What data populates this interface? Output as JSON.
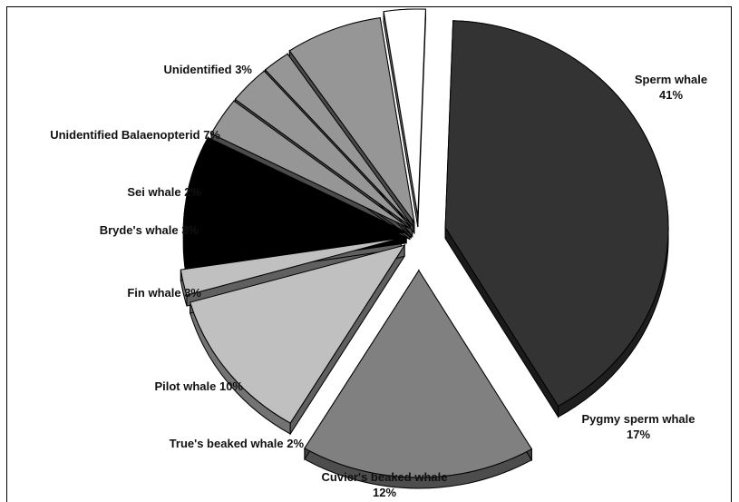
{
  "chart_data": {
    "type": "pie",
    "style": "3d-exploded",
    "slices": [
      {
        "label": "Sperm whale",
        "value": 41,
        "color": "#333333"
      },
      {
        "label": "Pygmy sperm whale",
        "value": 17,
        "color": "#808080"
      },
      {
        "label": "Cuvier's beaked whale",
        "value": 12,
        "color": "#c0c0c0"
      },
      {
        "label": "True's beaked whale",
        "value": 2,
        "color": "#c0c0c0"
      },
      {
        "label": "Pilot whale",
        "value": 10,
        "color": "#000000"
      },
      {
        "label": "Fin whale",
        "value": 3,
        "color": "#969696"
      },
      {
        "label": "Bryde's whale",
        "value": 3,
        "color": "#969696"
      },
      {
        "label": "Sei whale",
        "value": 2,
        "color": "#969696"
      },
      {
        "label": "Unidentified Balaenopterid",
        "value": 7,
        "color": "#969696"
      },
      {
        "label": "Unidentified",
        "value": 3,
        "color": "#ffffff"
      }
    ],
    "value_format": "{v}%",
    "legend": "none"
  }
}
